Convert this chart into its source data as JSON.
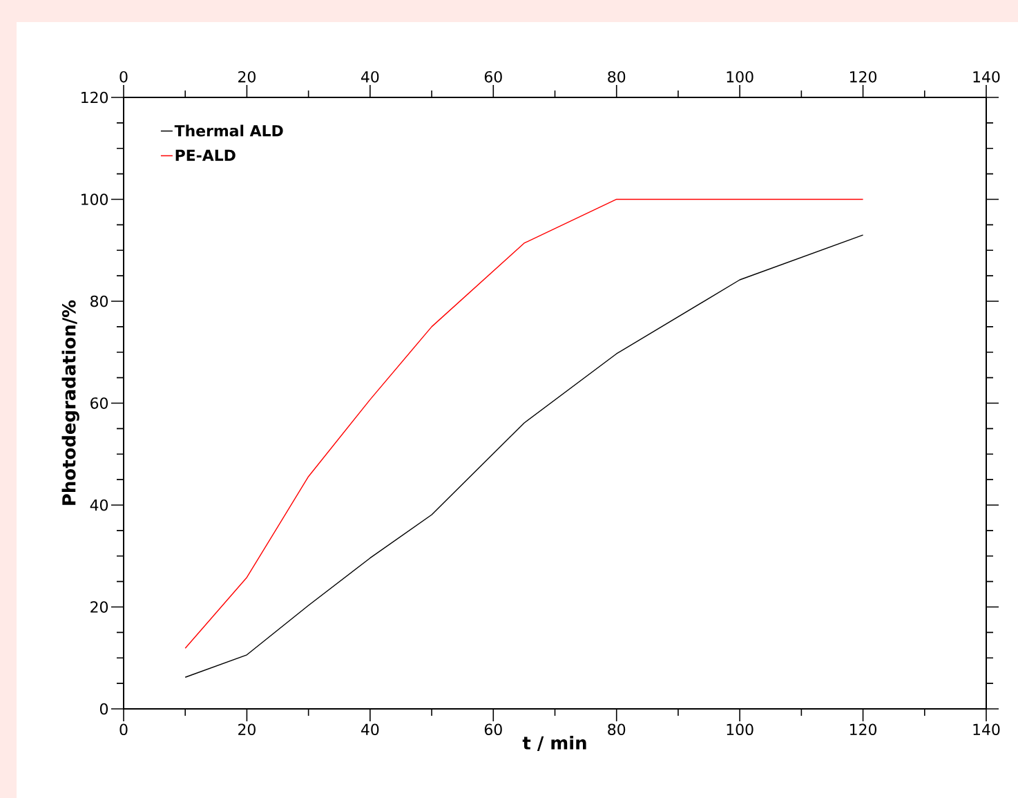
{
  "chart_data": {
    "type": "line",
    "xlabel": "t / min",
    "ylabel": "Photodegradation/%",
    "xlim": [
      0,
      140
    ],
    "xticks": [
      0,
      20,
      40,
      60,
      80,
      100,
      120,
      140
    ],
    "x2lim": [
      0,
      140
    ],
    "x2ticks": [
      0,
      20,
      40,
      60,
      80,
      100,
      120,
      140
    ],
    "ylim": [
      0,
      120
    ],
    "yticks": [
      0,
      20,
      40,
      60,
      80,
      100,
      120
    ],
    "legend": "top left",
    "grid": false,
    "marker": "none",
    "line_style": "solid",
    "series": [
      {
        "name": "Thermal ALD",
        "color": "#000000",
        "x": [
          10,
          20,
          30,
          40,
          50,
          65,
          80,
          100,
          120
        ],
        "values": [
          6.2,
          10.6,
          20.3,
          29.6,
          38.1,
          56.1,
          69.7,
          84.2,
          93.0
        ]
      },
      {
        "name": "PE-ALD",
        "color": "#ff0000",
        "x": [
          10,
          20,
          30,
          40,
          50,
          65,
          80,
          120
        ],
        "values": [
          11.9,
          25.8,
          45.6,
          60.7,
          75.0,
          91.4,
          100,
          100
        ]
      }
    ]
  }
}
